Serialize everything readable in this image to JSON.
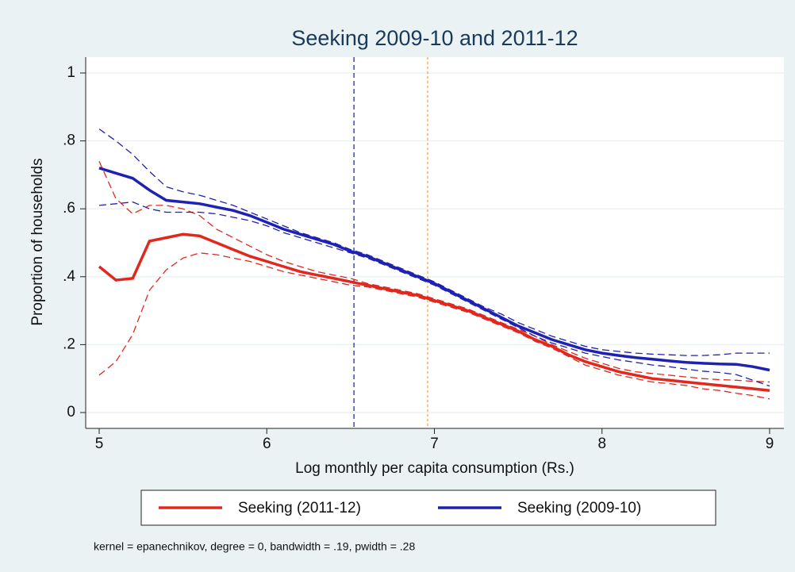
{
  "chart_data": {
    "type": "line",
    "title": "Seeking 2009-10 and 2011-12",
    "xlabel": "Log monthly per capita consumption (Rs.)",
    "ylabel": "Proportion of households",
    "note": "kernel = epanechnikov, degree = 0, bandwidth = .19, pwidth = .28",
    "x": [
      5,
      5.1,
      5.2,
      5.3,
      5.4,
      5.5,
      5.6,
      5.7,
      5.8,
      5.9,
      6,
      6.1,
      6.2,
      6.3,
      6.4,
      6.5,
      6.6,
      6.7,
      6.8,
      6.9,
      7,
      7.1,
      7.2,
      7.3,
      7.4,
      7.5,
      7.6,
      7.7,
      7.8,
      7.9,
      8,
      8.1,
      8.2,
      8.3,
      8.4,
      8.5,
      8.6,
      8.7,
      8.8,
      8.9,
      9
    ],
    "series": [
      {
        "name": "Seeking (2011-12)",
        "color": "#e0281e",
        "values": [
          0.43,
          0.39,
          0.395,
          0.505,
          0.515,
          0.525,
          0.52,
          0.5,
          0.48,
          0.46,
          0.445,
          0.43,
          0.415,
          0.405,
          0.395,
          0.385,
          0.375,
          0.365,
          0.355,
          0.345,
          0.33,
          0.315,
          0.3,
          0.28,
          0.26,
          0.24,
          0.215,
          0.195,
          0.17,
          0.15,
          0.135,
          0.12,
          0.11,
          0.1,
          0.095,
          0.09,
          0.085,
          0.08,
          0.075,
          0.07,
          0.065
        ],
        "upper": [
          0.74,
          0.63,
          0.585,
          0.61,
          0.61,
          0.6,
          0.58,
          0.54,
          0.515,
          0.49,
          0.465,
          0.445,
          0.43,
          0.415,
          0.405,
          0.395,
          0.38,
          0.37,
          0.36,
          0.35,
          0.335,
          0.32,
          0.305,
          0.285,
          0.265,
          0.245,
          0.225,
          0.2,
          0.18,
          0.16,
          0.145,
          0.13,
          0.12,
          0.115,
          0.11,
          0.105,
          0.1,
          0.097,
          0.095,
          0.092,
          0.09
        ],
        "lower": [
          0.11,
          0.15,
          0.23,
          0.36,
          0.42,
          0.455,
          0.47,
          0.465,
          0.455,
          0.445,
          0.43,
          0.415,
          0.405,
          0.395,
          0.385,
          0.375,
          0.37,
          0.36,
          0.35,
          0.34,
          0.325,
          0.31,
          0.295,
          0.275,
          0.255,
          0.235,
          0.21,
          0.19,
          0.165,
          0.14,
          0.125,
          0.11,
          0.1,
          0.09,
          0.085,
          0.08,
          0.07,
          0.065,
          0.057,
          0.05,
          0.04
        ]
      },
      {
        "name": "Seeking (2009-10)",
        "color": "#1f22b0",
        "values": [
          0.72,
          0.705,
          0.69,
          0.655,
          0.625,
          0.62,
          0.615,
          0.605,
          0.595,
          0.58,
          0.56,
          0.54,
          0.525,
          0.51,
          0.495,
          0.475,
          0.46,
          0.44,
          0.42,
          0.4,
          0.38,
          0.355,
          0.33,
          0.305,
          0.28,
          0.255,
          0.235,
          0.215,
          0.2,
          0.185,
          0.175,
          0.168,
          0.162,
          0.157,
          0.152,
          0.148,
          0.145,
          0.143,
          0.142,
          0.135,
          0.125
        ],
        "upper": [
          0.835,
          0.8,
          0.76,
          0.71,
          0.665,
          0.65,
          0.64,
          0.625,
          0.61,
          0.59,
          0.57,
          0.55,
          0.53,
          0.515,
          0.5,
          0.48,
          0.465,
          0.445,
          0.425,
          0.405,
          0.385,
          0.36,
          0.335,
          0.31,
          0.29,
          0.265,
          0.245,
          0.225,
          0.21,
          0.195,
          0.185,
          0.18,
          0.175,
          0.172,
          0.17,
          0.168,
          0.168,
          0.17,
          0.175,
          0.175,
          0.175
        ],
        "lower": [
          0.61,
          0.615,
          0.62,
          0.6,
          0.59,
          0.59,
          0.59,
          0.585,
          0.575,
          0.565,
          0.55,
          0.53,
          0.515,
          0.5,
          0.485,
          0.47,
          0.455,
          0.435,
          0.415,
          0.395,
          0.375,
          0.35,
          0.325,
          0.3,
          0.275,
          0.25,
          0.225,
          0.205,
          0.19,
          0.175,
          0.165,
          0.155,
          0.148,
          0.14,
          0.135,
          0.128,
          0.122,
          0.118,
          0.112,
          0.095,
          0.078
        ]
      }
    ],
    "vlines": [
      {
        "x": 6.52,
        "color": "#4a4aa0"
      },
      {
        "x": 6.96,
        "color": "#f0b068"
      }
    ],
    "xlim": [
      5,
      9
    ],
    "xticks": [
      5,
      6,
      7,
      8,
      9
    ],
    "ylim": [
      0,
      1
    ],
    "yticks": [
      0,
      {
        "value": 0.2,
        "label": ".2"
      },
      {
        "value": 0.4,
        "label": ".4"
      },
      {
        "value": 0.6,
        "label": ".6"
      },
      {
        "value": 0.8,
        "label": ".8"
      },
      1
    ],
    "grid": true
  }
}
